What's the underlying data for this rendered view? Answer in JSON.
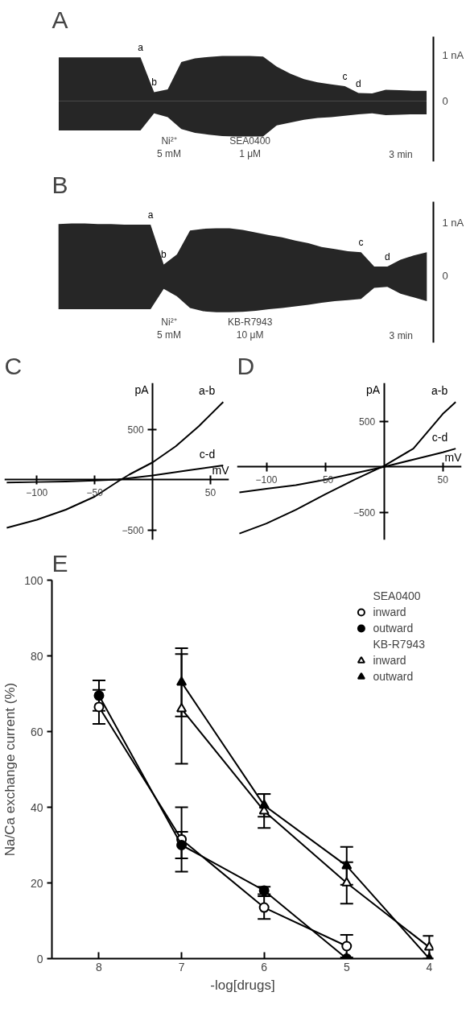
{
  "chart_data": [
    {
      "type": "area",
      "title": "A",
      "categories": [
        null,
        null,
        null,
        null,
        null,
        null,
        null,
        null,
        null,
        null,
        null,
        null,
        null,
        null,
        null,
        null,
        null,
        null,
        null,
        null,
        null,
        null,
        null,
        null,
        null,
        null,
        null,
        null
      ],
      "series": [
        {
          "color": "#000000",
          "values": [
            0.95,
            0.95,
            0.95,
            0.95,
            0.95,
            0.95,
            0.95,
            0.2,
            0.26,
            0.85,
            0.93,
            0.96,
            0.98,
            0.98,
            0.98,
            0.97,
            0.75,
            0.6,
            0.48,
            0.41,
            0.37,
            0.33,
            0.18,
            0.17,
            0.25,
            0.24,
            0.23,
            0.23
          ],
          "value_labels": [
            null,
            null,
            null,
            null,
            null,
            null,
            "a",
            "b",
            null,
            null,
            null,
            null,
            null,
            null,
            null,
            null,
            null,
            null,
            null,
            null,
            null,
            "c",
            "d",
            null,
            null,
            null,
            null,
            null
          ]
        },
        {
          "color": "#000000",
          "values": [
            -0.63,
            -0.63,
            -0.63,
            -0.63,
            -0.63,
            -0.63,
            -0.63,
            -0.26,
            -0.34,
            -0.6,
            -0.68,
            -0.72,
            -0.75,
            -0.76,
            -0.76,
            -0.76,
            -0.52,
            -0.46,
            -0.4,
            -0.36,
            -0.34,
            -0.31,
            -0.28,
            -0.26,
            -0.3,
            -0.29,
            -0.28,
            -0.28
          ]
        }
      ],
      "ylim": [
        -1.3,
        1.4
      ],
      "yticks": [
        0,
        {
          "value": 1,
          "label": "1 nA"
        }
      ],
      "tick_labels": "y",
      "grid": false,
      "annotations": [
        "Ni²⁺\n5 mM",
        "SEA0400\n1 μM",
        "3 min"
      ]
    },
    {
      "type": "area",
      "title": "B",
      "categories": [
        null,
        null,
        null,
        null,
        null,
        null,
        null,
        null,
        null,
        null,
        null,
        null,
        null,
        null,
        null,
        null,
        null,
        null,
        null,
        null,
        null,
        null,
        null,
        null,
        null,
        null,
        null,
        null,
        null
      ],
      "series": [
        {
          "color": "#000000",
          "values": [
            0.98,
            0.99,
            0.99,
            0.98,
            0.98,
            0.97,
            0.97,
            0.97,
            0.22,
            0.41,
            0.86,
            0.89,
            0.9,
            0.9,
            0.87,
            0.82,
            0.77,
            0.73,
            0.67,
            0.62,
            0.55,
            0.51,
            0.47,
            0.45,
            0.18,
            0.18,
            0.31,
            0.39,
            0.45
          ],
          "value_labels": [
            null,
            null,
            null,
            null,
            null,
            null,
            null,
            "a",
            "b",
            null,
            null,
            null,
            null,
            null,
            null,
            null,
            null,
            null,
            null,
            null,
            null,
            null,
            null,
            "c",
            null,
            "d",
            null,
            null,
            null
          ]
        },
        {
          "color": "#000000",
          "values": [
            -0.62,
            -0.62,
            -0.62,
            -0.62,
            -0.62,
            -0.62,
            -0.62,
            -0.62,
            -0.24,
            -0.38,
            -0.6,
            -0.66,
            -0.68,
            -0.68,
            -0.67,
            -0.65,
            -0.62,
            -0.6,
            -0.57,
            -0.54,
            -0.5,
            -0.47,
            -0.45,
            -0.43,
            -0.22,
            -0.2,
            -0.33,
            -0.4,
            -0.47
          ]
        }
      ],
      "ylim": [
        -1.25,
        1.4
      ],
      "yticks": [
        0,
        {
          "value": 1,
          "label": "1 nA"
        }
      ],
      "tick_labels": "y",
      "grid": false,
      "annotations": [
        "Ni²⁺\n5 mM",
        "KB-R7943\n10 μM",
        "3 min"
      ]
    },
    {
      "type": "line",
      "title": "C",
      "xlabel": "mV",
      "ylabel": "pA",
      "xlim": [
        -128,
        66
      ],
      "ylim": [
        -600,
        960
      ],
      "xticks": [
        -100,
        -50,
        50
      ],
      "yticks": [
        -500,
        500
      ],
      "grid": false,
      "series": [
        {
          "name": "a-b",
          "color": "#000000",
          "x": [
            -126,
            -100,
            -75,
            -50,
            -30,
            -20,
            0,
            20,
            40,
            61
          ],
          "values": [
            -480,
            -400,
            -300,
            -170,
            -20,
            50,
            170,
            330,
            530,
            770
          ]
        },
        {
          "name": "c-d",
          "color": "#000000",
          "x": [
            -126,
            -100,
            -75,
            -50,
            -30,
            0,
            30,
            61
          ],
          "values": [
            -30,
            -25,
            -20,
            -10,
            0,
            40,
            90,
            140
          ]
        }
      ]
    },
    {
      "type": "line",
      "title": "D",
      "xlabel": "mV",
      "ylabel": "pA",
      "xlim": [
        -125,
        66
      ],
      "ylim": [
        -800,
        920
      ],
      "xticks": [
        -100,
        -50,
        50
      ],
      "yticks": [
        -500,
        500
      ],
      "grid": false,
      "series": [
        {
          "name": "a-b",
          "color": "#000000",
          "x": [
            -123,
            -100,
            -75,
            -50,
            -25,
            0,
            25,
            50,
            61
          ],
          "values": [
            -730,
            -620,
            -470,
            -300,
            -140,
            10,
            200,
            580,
            710
          ]
        },
        {
          "name": "c-d",
          "color": "#000000",
          "x": [
            -123,
            -100,
            -75,
            -50,
            -25,
            0,
            25,
            50,
            61
          ],
          "values": [
            -280,
            -240,
            -200,
            -140,
            -70,
            0,
            80,
            160,
            200
          ]
        }
      ]
    },
    {
      "type": "line",
      "title": "E",
      "xlabel": "-log[drugs]",
      "ylabel": "Na/Ca exchange current (%)",
      "xlim": [
        8.57,
        3.95
      ],
      "xticks": [
        8,
        7,
        6,
        5,
        4
      ],
      "ylim": [
        0,
        100
      ],
      "yticks": [
        0,
        20,
        40,
        60,
        80,
        100
      ],
      "grid": false,
      "legend": "top right",
      "annotations": [
        "SEA0400",
        "KB-R7943"
      ],
      "series": [
        {
          "name": "inward",
          "color": "#000000",
          "marker": "circle_open",
          "x": [
            8,
            7,
            6,
            5
          ],
          "values": [
            66.5,
            31.5,
            13.5,
            3.3
          ],
          "errors": [
            4.5,
            8.5,
            3,
            3
          ]
        },
        {
          "name": "outward",
          "color": "#000000",
          "marker": "circle",
          "x": [
            8,
            7,
            6,
            5
          ],
          "values": [
            69.5,
            30,
            18,
            0
          ],
          "errors": [
            4,
            3.5,
            1,
            null
          ]
        },
        {
          "name": "inward",
          "color": "#000000",
          "marker": "triangle_open",
          "x": [
            7,
            6,
            5,
            4
          ],
          "values": [
            66,
            39,
            20,
            3
          ],
          "errors": [
            14.5,
            4.5,
            5.5,
            3
          ]
        },
        {
          "name": "outward",
          "color": "#000000",
          "marker": "triangle",
          "x": [
            7,
            6,
            5,
            4
          ],
          "values": [
            73,
            40.5,
            24.5,
            0
          ],
          "errors": [
            9,
            3,
            5,
            null
          ]
        }
      ]
    }
  ]
}
